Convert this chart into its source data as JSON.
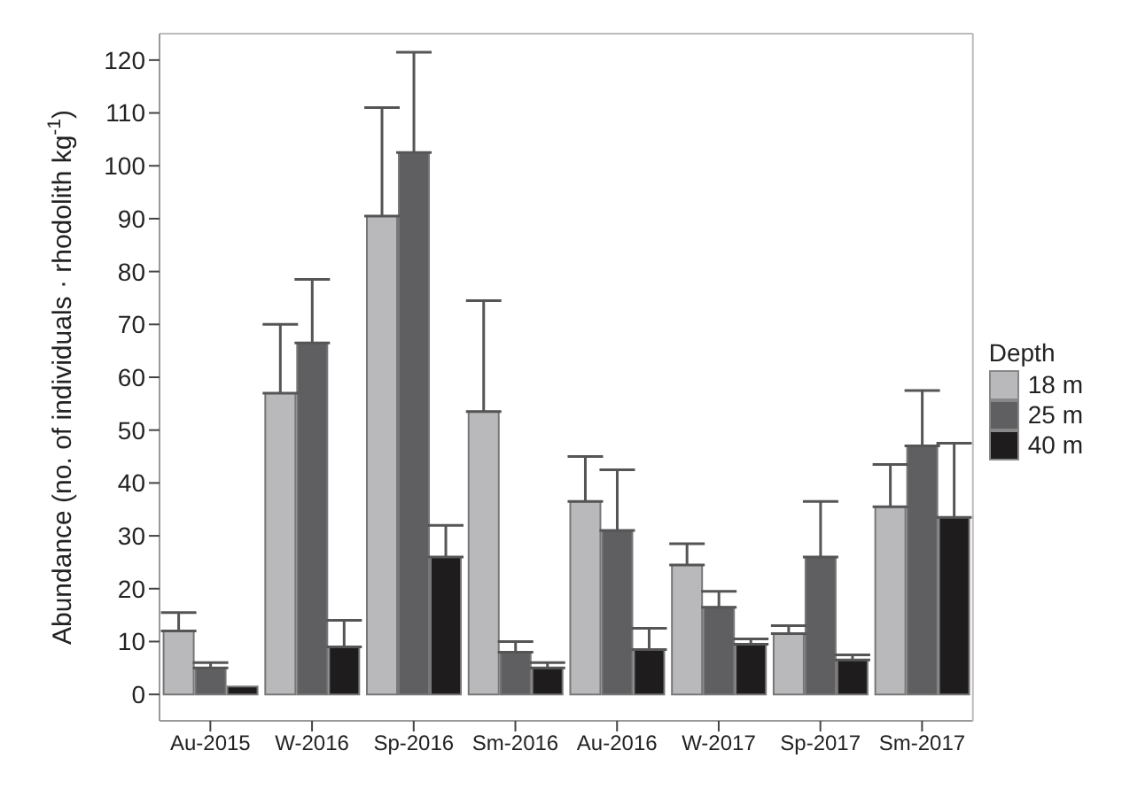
{
  "chart_data": {
    "type": "bar",
    "ylabel": "Abundance (no. of individuals · rhodolith kg$^{-1}$)",
    "legend_title": "Depth",
    "categories": [
      "Au-2015",
      "W-2016",
      "Sp-2016",
      "Sm-2016",
      "Au-2016",
      "W-2017",
      "Sp-2017",
      "Sm-2017"
    ],
    "series": [
      {
        "name": "18 m",
        "color": "#b9b9bb",
        "values": [
          12,
          57,
          90.5,
          53.5,
          36.5,
          24.5,
          11.5,
          35.5
        ],
        "errors": [
          [
            12,
            15.5
          ],
          [
            57,
            70
          ],
          [
            90.5,
            111
          ],
          [
            53.5,
            74.5
          ],
          [
            36.5,
            45
          ],
          [
            24.5,
            28.5
          ],
          [
            11.5,
            13
          ],
          [
            35.5,
            43.5
          ]
        ]
      },
      {
        "name": "25 m",
        "color": "#5f5f61",
        "values": [
          5,
          66.5,
          102.5,
          8,
          31,
          16.5,
          26,
          47
        ],
        "errors": [
          [
            5,
            6
          ],
          [
            66.5,
            78.5
          ],
          [
            102.5,
            121.5
          ],
          [
            8,
            10
          ],
          [
            31,
            42.5
          ],
          [
            16.5,
            19.5
          ],
          [
            26,
            36.5
          ],
          [
            47,
            57.5
          ]
        ]
      },
      {
        "name": "40 m",
        "color": "#1e1c1d",
        "values": [
          1.5,
          9,
          26,
          5,
          8.5,
          9.5,
          6.5,
          33.5
        ],
        "errors": [
          null,
          [
            9,
            14
          ],
          [
            26,
            32
          ],
          [
            5,
            6
          ],
          [
            8.5,
            12.5
          ],
          [
            9.5,
            10.5
          ],
          [
            6.5,
            7.5
          ],
          [
            33.5,
            47.5
          ]
        ]
      }
    ],
    "ylim": [
      -5,
      125
    ],
    "yticks": [
      0,
      10,
      20,
      30,
      40,
      50,
      60,
      70,
      80,
      90,
      100,
      110,
      120
    ],
    "grid": false,
    "legend": "right"
  }
}
